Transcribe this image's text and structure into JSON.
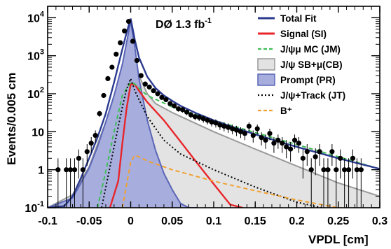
{
  "chart_data": {
    "type": "line",
    "title": "",
    "annotation": {
      "text": "DØ  1.3 fb",
      "sup": "-1"
    },
    "xlabel": "VPDL [cm]",
    "ylabel": "Events/0.005 cm",
    "xlim": [
      -0.1,
      0.3
    ],
    "ylim": [
      0.1,
      20000
    ],
    "yscale": "log",
    "grid": false,
    "legend_position": "top-right",
    "x_ticks": [
      {
        "value": -0.1,
        "label": "-0.1"
      },
      {
        "value": -0.05,
        "label": "-0.05"
      },
      {
        "value": 0,
        "label": "0"
      },
      {
        "value": 0.05,
        "label": "0.05"
      },
      {
        "value": 0.1,
        "label": "0.1"
      },
      {
        "value": 0.15,
        "label": "0.15"
      },
      {
        "value": 0.2,
        "label": "0.2"
      },
      {
        "value": 0.25,
        "label": "0.25"
      },
      {
        "value": 0.3,
        "label": "0.3"
      }
    ],
    "y_ticks": [
      {
        "value": 0.1,
        "base": "10",
        "exp": "-1"
      },
      {
        "value": 1,
        "base": "1",
        "exp": ""
      },
      {
        "value": 10,
        "base": "10",
        "exp": ""
      },
      {
        "value": 100,
        "base": "10",
        "exp": "2"
      },
      {
        "value": 1000,
        "base": "10",
        "exp": "3"
      },
      {
        "value": 10000,
        "base": "10",
        "exp": "4"
      }
    ],
    "legend": [
      {
        "key": "total",
        "label": "Total Fit",
        "style": "line",
        "color": "#2b3a8f"
      },
      {
        "key": "signal",
        "label": "Signal (SI)",
        "style": "line",
        "color": "#e8252a"
      },
      {
        "key": "jm",
        "label": "J/ψμ MC (JM)",
        "style": "dashed",
        "color": "#3fbf55"
      },
      {
        "key": "cb",
        "label": "J/ψ SB+μ(CB)",
        "style": "box",
        "color": "#e3e3e3",
        "border": "#9a9a9a"
      },
      {
        "key": "prompt",
        "label": "Prompt (PR)",
        "style": "box",
        "color": "#a7aede",
        "border": "#5b66b6"
      },
      {
        "key": "jt",
        "label": "J/ψ+Track (JT)",
        "style": "dotted",
        "color": "#000000"
      },
      {
        "key": "bplus",
        "label": "B⁺",
        "style": "dashed",
        "color": "#f0a030"
      }
    ],
    "series": [
      {
        "key": "cb",
        "type": "area",
        "x": [
          -0.1,
          -0.07,
          -0.05,
          -0.03,
          -0.02,
          -0.01,
          -0.005,
          0,
          0.005,
          0.01,
          0.02,
          0.03,
          0.05,
          0.1,
          0.15,
          0.2,
          0.25,
          0.3
        ],
        "y": [
          0.1,
          0.22,
          1.2,
          18,
          90,
          450,
          1400,
          4500,
          900,
          300,
          100,
          55,
          32,
          10,
          3.5,
          1.25,
          0.45,
          0.2
        ]
      },
      {
        "key": "prompt",
        "type": "area",
        "x": [
          -0.1,
          -0.07,
          -0.05,
          -0.04,
          -0.03,
          -0.02,
          -0.01,
          -0.005,
          0,
          0.005,
          0.01,
          0.015,
          0.02,
          0.03,
          0.04,
          0.05,
          0.06,
          0.07,
          0.08
        ],
        "y": [
          0.1,
          0.18,
          1.1,
          4,
          18,
          90,
          600,
          2200,
          8000,
          1700,
          250,
          70,
          20,
          3.2,
          0.8,
          0.3,
          0.13,
          0.1,
          0.1
        ]
      },
      {
        "key": "signal",
        "type": "line",
        "x": [
          -0.025,
          -0.015,
          -0.01,
          -0.005,
          0,
          0.005,
          0.01,
          0.02,
          0.04,
          0.06,
          0.08,
          0.1,
          0.12,
          0.135
        ],
        "y": [
          0.1,
          0.5,
          5,
          40,
          180,
          175,
          120,
          60,
          20,
          5.5,
          1.5,
          0.42,
          0.12,
          0.1
        ]
      },
      {
        "key": "jm",
        "type": "line",
        "x": [
          -0.04,
          -0.03,
          -0.02,
          -0.01,
          0,
          0.005,
          0.01,
          0.02,
          0.05,
          0.1,
          0.15,
          0.2,
          0.25,
          0.3
        ],
        "y": [
          0.1,
          0.9,
          10,
          90,
          200,
          180,
          140,
          90,
          45,
          20,
          9.5,
          4.6,
          2.2,
          1.05
        ]
      },
      {
        "key": "jt",
        "type": "line",
        "x": [
          -0.035,
          -0.02,
          -0.01,
          -0.005,
          0,
          0.005,
          0.01,
          0.02,
          0.04,
          0.06,
          0.1,
          0.15,
          0.2,
          0.23
        ],
        "y": [
          0.1,
          4,
          45,
          130,
          250,
          120,
          70,
          25,
          6,
          2.6,
          1.0,
          0.35,
          0.14,
          0.1
        ]
      },
      {
        "key": "bplus",
        "type": "line",
        "x": [
          -0.01,
          -0.005,
          0,
          0.005,
          0.01,
          0.02,
          0.05,
          0.1,
          0.15,
          0.2,
          0.25,
          0.3
        ],
        "y": [
          0.1,
          0.4,
          1.6,
          2.4,
          2.2,
          1.7,
          1.0,
          0.5,
          0.28,
          0.16,
          0.1,
          0.08
        ]
      },
      {
        "key": "total",
        "type": "line",
        "x": [
          -0.1,
          -0.08,
          -0.07,
          -0.06,
          -0.05,
          -0.04,
          -0.03,
          -0.02,
          -0.01,
          -0.005,
          0,
          0.005,
          0.01,
          0.02,
          0.03,
          0.04,
          0.05,
          0.06,
          0.08,
          0.1,
          0.12,
          0.15,
          0.2,
          0.25,
          0.3
        ],
        "y": [
          0.1,
          0.11,
          0.2,
          0.6,
          2.0,
          7,
          30,
          200,
          1500,
          4000,
          9500,
          2600,
          900,
          280,
          140,
          90,
          65,
          48,
          30,
          20,
          14,
          8.5,
          4.0,
          2.0,
          1.05
        ]
      }
    ],
    "data_points": {
      "x": [
        -0.0875,
        -0.0775,
        -0.0725,
        -0.0675,
        -0.0625,
        -0.0575,
        -0.0525,
        -0.0475,
        -0.0425,
        -0.0375,
        -0.0325,
        -0.0275,
        -0.0225,
        -0.0175,
        -0.0125,
        -0.0075,
        -0.0025,
        0.0025,
        0.0075,
        0.0125,
        0.0175,
        0.0225,
        0.0275,
        0.0325,
        0.0375,
        0.0425,
        0.0475,
        0.0525,
        0.0575,
        0.0625,
        0.0675,
        0.0725,
        0.0775,
        0.0825,
        0.0875,
        0.0925,
        0.0975,
        0.1025,
        0.1075,
        0.1125,
        0.1175,
        0.1225,
        0.1275,
        0.1325,
        0.1375,
        0.1425,
        0.1475,
        0.1525,
        0.1575,
        0.1625,
        0.1675,
        0.1725,
        0.1775,
        0.1825,
        0.1875,
        0.1925,
        0.1975,
        0.2025,
        0.2075,
        0.2125,
        0.2175,
        0.2225,
        0.2275,
        0.2325,
        0.2375,
        0.2425,
        0.2475,
        0.2525,
        0.2575,
        0.2625,
        0.2675,
        0.2725,
        0.2775
      ],
      "y": [
        1,
        1,
        1,
        1,
        2,
        1,
        3,
        5,
        8,
        30,
        90,
        250,
        500,
        1100,
        2200,
        4500,
        8000,
        2400,
        750,
        300,
        180,
        150,
        120,
        100,
        80,
        70,
        55,
        48,
        40,
        38,
        33,
        28,
        25,
        24,
        22,
        20,
        18,
        17,
        15,
        14,
        13,
        12,
        11,
        10,
        9,
        14,
        8,
        12,
        7,
        6,
        9,
        5,
        6,
        5,
        4,
        3.5,
        6,
        5,
        2,
        3,
        1,
        2.2,
        3,
        1,
        1,
        3,
        1,
        2,
        1,
        1,
        2,
        1,
        1
      ]
    }
  }
}
